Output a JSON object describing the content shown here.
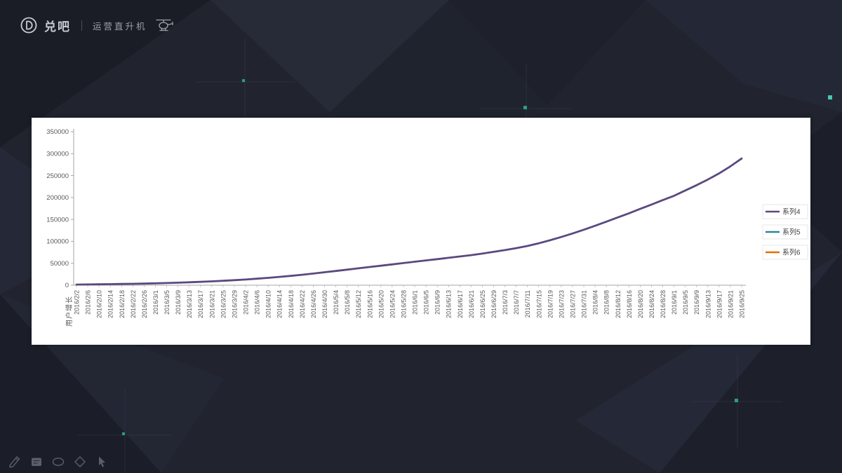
{
  "theme": {
    "background": "#21242e",
    "accent_teal": "#2a9d8a",
    "accent_teal_bright": "#45c9ad",
    "card_background": "#ffffff",
    "axis_color": "#a6a6a6",
    "tick_label_color": "#595959"
  },
  "header": {
    "brand": "兑吧",
    "product": "运营直升机",
    "logo_icon": "duiba-d-logo",
    "product_icon": "helicopter-icon"
  },
  "toolbar": {
    "tools": [
      {
        "icon": "pencil-icon"
      },
      {
        "icon": "eraser-icon"
      },
      {
        "icon": "ellipse-icon"
      },
      {
        "icon": "diamond-icon"
      },
      {
        "icon": "cursor-icon"
      }
    ]
  },
  "chart_data": {
    "type": "line",
    "title": "",
    "xlabel": "",
    "ylabel": "用户增长",
    "ylim": [
      0,
      350000
    ],
    "yticks": [
      0,
      50000,
      100000,
      150000,
      200000,
      250000,
      300000,
      350000
    ],
    "grid": false,
    "legend_position": "right",
    "categories": [
      "2016/2/2",
      "2016/2/6",
      "2016/2/10",
      "2016/2/14",
      "2016/2/18",
      "2016/2/22",
      "2016/2/26",
      "2016/3/1",
      "2016/3/5",
      "2016/3/9",
      "2016/3/13",
      "2016/3/17",
      "2016/3/21",
      "2016/3/25",
      "2016/3/29",
      "2016/4/2",
      "2016/4/6",
      "2016/4/10",
      "2016/4/14",
      "2016/4/18",
      "2016/4/22",
      "2016/4/26",
      "2016/4/30",
      "2016/5/4",
      "2016/5/8",
      "2016/5/12",
      "2016/5/16",
      "2016/5/20",
      "2016/5/24",
      "2016/5/28",
      "2016/6/1",
      "2016/6/5",
      "2016/6/9",
      "2016/6/13",
      "2016/6/17",
      "2016/6/21",
      "2016/6/25",
      "2016/6/29",
      "2016/7/3",
      "2016/7/7",
      "2016/7/11",
      "2016/7/15",
      "2016/7/19",
      "2016/7/23",
      "2016/7/27",
      "2016/7/31",
      "2016/8/4",
      "2016/8/8",
      "2016/8/12",
      "2016/8/16",
      "2016/8/20",
      "2016/8/24",
      "2016/8/28",
      "2016/9/1",
      "2016/9/5",
      "2016/9/9",
      "2016/9/13",
      "2016/9/17",
      "2016/9/21",
      "2016/9/25"
    ],
    "series": [
      {
        "name": "系列4",
        "color": "#5b497f",
        "visible": true,
        "values": [
          1500,
          1800,
          2100,
          2400,
          2800,
          3200,
          3700,
          4300,
          5000,
          5800,
          6700,
          7700,
          8800,
          10000,
          11500,
          13000,
          14800,
          16800,
          19000,
          21300,
          23800,
          26500,
          29500,
          32500,
          35500,
          38500,
          41500,
          44500,
          47500,
          50500,
          53500,
          56500,
          59500,
          62500,
          65500,
          68500,
          72000,
          76000,
          80000,
          84500,
          89500,
          95500,
          102500,
          110000,
          118000,
          126500,
          135500,
          145000,
          154500,
          164000,
          174000,
          184000,
          194000,
          204000,
          216000,
          228000,
          241000,
          255000,
          271000,
          289000
        ]
      },
      {
        "name": "系列5",
        "color": "#31859c",
        "visible": false,
        "values": []
      },
      {
        "name": "系列6",
        "color": "#e46c0a",
        "visible": false,
        "values": []
      }
    ]
  }
}
